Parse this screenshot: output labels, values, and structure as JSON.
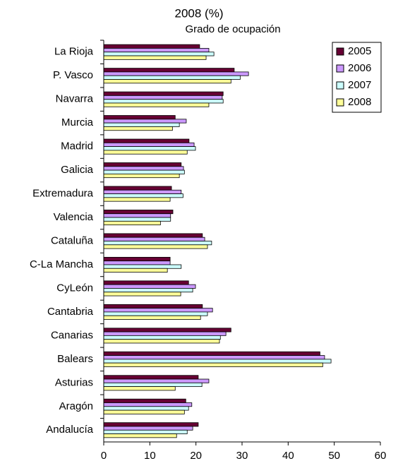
{
  "chart_data": {
    "type": "hbar",
    "title": "2008 (%)",
    "subtitle": "Grado de ocupación",
    "categories": [
      "La Rioja",
      "P. Vasco",
      "Navarra",
      "Murcia",
      "Madrid",
      "Galicia",
      "Extremadura",
      "Valencia",
      "Cataluña",
      "C-La Mancha",
      "CyLeón",
      "Cantabria",
      "Canarias",
      "Balears",
      "Asturias",
      "Aragón",
      "Andalucía"
    ],
    "series": [
      {
        "name": "2005",
        "color": "#660033",
        "values": [
          20.8,
          28.3,
          25.9,
          15.5,
          18.5,
          16.8,
          14.7,
          15.0,
          21.4,
          14.4,
          18.4,
          21.4,
          27.6,
          46.9,
          20.5,
          17.8,
          20.5
        ]
      },
      {
        "name": "2006",
        "color": "#cc99ff",
        "values": [
          22.8,
          31.4,
          25.7,
          17.9,
          19.6,
          17.3,
          16.8,
          14.5,
          21.9,
          14.4,
          19.9,
          23.6,
          26.5,
          47.9,
          22.8,
          19.1,
          19.3
        ]
      },
      {
        "name": "2007",
        "color": "#ccffff",
        "values": [
          23.9,
          29.6,
          25.9,
          16.4,
          19.9,
          17.5,
          17.2,
          14.5,
          23.4,
          16.8,
          19.3,
          22.5,
          25.3,
          49.3,
          21.3,
          18.4,
          18.1
        ]
      },
      {
        "name": "2008",
        "color": "#ffff99",
        "values": [
          22.2,
          27.6,
          22.8,
          14.9,
          18.1,
          16.4,
          14.4,
          12.3,
          22.5,
          13.8,
          16.7,
          21.0,
          25.1,
          47.5,
          15.5,
          17.5,
          15.8
        ]
      }
    ],
    "xlim": [
      0,
      60
    ],
    "xticks": [
      0,
      10,
      20,
      30,
      40,
      50,
      60
    ],
    "legend": "top-right"
  }
}
